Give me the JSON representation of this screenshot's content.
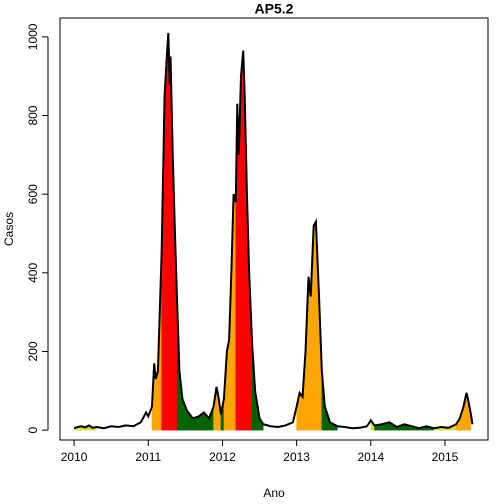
{
  "chart_data": {
    "type": "area",
    "title": "AP5.2",
    "xlabel": "Ano",
    "ylabel": "Casos",
    "line_color": "#000000",
    "x": [
      2010.0,
      2010.05,
      2010.1,
      2010.15,
      2010.2,
      2010.25,
      2010.3,
      2010.4,
      2010.5,
      2010.6,
      2010.7,
      2010.8,
      2010.9,
      2010.97,
      2011.0,
      2011.05,
      2011.08,
      2011.1,
      2011.13,
      2011.18,
      2011.22,
      2011.25,
      2011.27,
      2011.29,
      2011.3,
      2011.33,
      2011.36,
      2011.39,
      2011.42,
      2011.46,
      2011.52,
      2011.6,
      2011.68,
      2011.75,
      2011.82,
      2011.88,
      2011.92,
      2011.95,
      2011.98,
      2012.02,
      2012.06,
      2012.09,
      2012.12,
      2012.15,
      2012.18,
      2012.2,
      2012.22,
      2012.25,
      2012.28,
      2012.3,
      2012.33,
      2012.36,
      2012.4,
      2012.44,
      2012.5,
      2012.55,
      2012.65,
      2012.75,
      2012.85,
      2012.95,
      2013.0,
      2013.04,
      2013.08,
      2013.12,
      2013.16,
      2013.19,
      2013.23,
      2013.26,
      2013.3,
      2013.34,
      2013.38,
      2013.45,
      2013.55,
      2013.65,
      2013.75,
      2013.85,
      2013.95,
      2014.0,
      2014.05,
      2014.15,
      2014.25,
      2014.35,
      2014.45,
      2014.55,
      2014.65,
      2014.75,
      2014.85,
      2014.95,
      2015.05,
      2015.15,
      2015.2,
      2015.25,
      2015.29,
      2015.32,
      2015.35,
      2015.37
    ],
    "values": [
      5,
      8,
      10,
      7,
      12,
      6,
      8,
      5,
      10,
      8,
      12,
      10,
      20,
      45,
      35,
      60,
      170,
      130,
      150,
      450,
      850,
      950,
      1010,
      880,
      950,
      700,
      500,
      320,
      150,
      80,
      50,
      30,
      35,
      45,
      30,
      60,
      110,
      80,
      40,
      80,
      200,
      230,
      400,
      600,
      580,
      830,
      700,
      900,
      965,
      850,
      600,
      400,
      220,
      100,
      30,
      15,
      10,
      8,
      12,
      20,
      60,
      95,
      85,
      200,
      390,
      340,
      520,
      530,
      350,
      150,
      60,
      20,
      10,
      8,
      5,
      6,
      10,
      25,
      12,
      15,
      20,
      8,
      15,
      10,
      5,
      10,
      5,
      8,
      6,
      15,
      30,
      60,
      95,
      70,
      40,
      15
    ],
    "fills": [
      "#dcdc3c",
      "#dcdc3c",
      "#dcdc3c",
      "#dcdc3c",
      "#dcdc3c",
      "#dcdc3c",
      null,
      null,
      null,
      null,
      null,
      null,
      null,
      null,
      null,
      "#ffa500",
      "#ffa500",
      "#ffa500",
      "#ffa500",
      "#ff0000",
      "#ff0000",
      "#ff0000",
      "#ff0000",
      "#ff0000",
      "#ff0000",
      "#ff0000",
      "#ff0000",
      "#006400",
      "#006400",
      "#006400",
      "#006400",
      "#006400",
      "#006400",
      "#006400",
      "#006400",
      "#ffa500",
      "#ffa500",
      "#ffa500",
      "#006400",
      "#ffa500",
      "#ffa500",
      "#ffa500",
      "#ffa500",
      "#ffa500",
      "#ff0000",
      "#ff0000",
      "#ff0000",
      "#ff0000",
      "#ff0000",
      "#ff0000",
      "#ff0000",
      "#ff0000",
      "#006400",
      "#006400",
      "#006400",
      null,
      null,
      null,
      null,
      null,
      "#ffa500",
      "#ffa500",
      "#ffa500",
      "#ffa500",
      "#ffa500",
      "#ffa500",
      "#ffa500",
      "#ffa500",
      "#ffa500",
      "#006400",
      "#006400",
      "#006400",
      null,
      null,
      null,
      null,
      null,
      "#dcdc3c",
      "#006400",
      "#006400",
      "#006400",
      "#006400",
      "#006400",
      "#006400",
      "#006400",
      "#006400",
      "#dcdc3c",
      "#dcdc3c",
      "#dcdc3c",
      "#ffa500",
      "#ffa500",
      "#ffa500",
      "#ffa500",
      "#ffa500",
      null,
      null
    ],
    "xlim": [
      2009.81,
      2015.58
    ],
    "ylim": [
      -25,
      1048
    ],
    "xticks": [
      2010,
      2011,
      2012,
      2013,
      2014,
      2015
    ],
    "yticks": [
      0,
      200,
      400,
      600,
      800,
      1000
    ]
  }
}
